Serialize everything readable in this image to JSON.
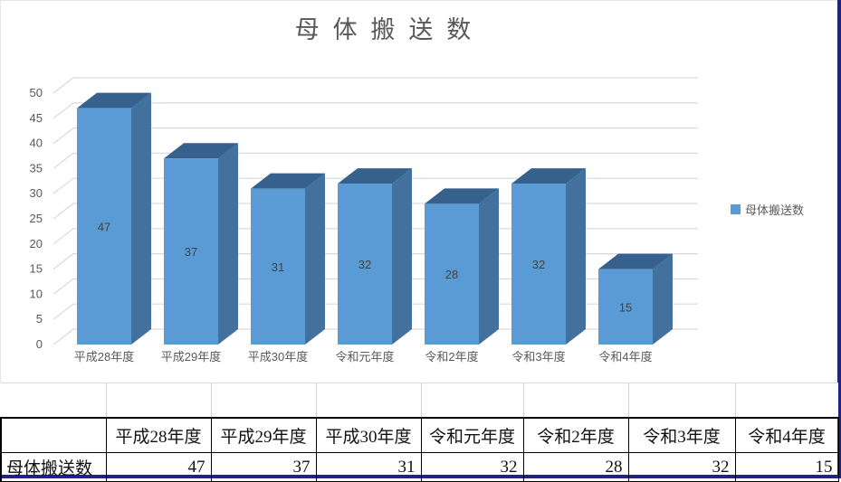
{
  "chart_data": {
    "type": "bar",
    "style": "3d-column",
    "title": "母体搬送数",
    "categories": [
      "平成28年度",
      "平成29年度",
      "平成30年度",
      "令和元年度",
      "令和2年度",
      "令和3年度",
      "令和4年度"
    ],
    "values": [
      47,
      37,
      31,
      32,
      28,
      32,
      15
    ],
    "series_name": "母体搬送数",
    "xlabel": "",
    "ylabel": "",
    "ylim": [
      0,
      50
    ],
    "ytick_step": 5,
    "grid": true,
    "legend_position": "right",
    "colors": {
      "bar_front": "#5B9BD5",
      "bar_side": "#41719C",
      "bar_top": "#35618C",
      "gridline": "#D9D9D9",
      "axis_text": "#595959",
      "bar_value_text": "#404040",
      "title_text": "#595959",
      "window_border": "#20208f"
    }
  },
  "legend": {
    "label": "母体搬送数"
  },
  "table": {
    "header_row": [
      "",
      "平成28年度",
      "平成29年度",
      "平成30年度",
      "令和元年度",
      "令和2年度",
      "令和3年度",
      "令和4年度"
    ],
    "row_label": "母体搬送数",
    "values": [
      47,
      37,
      31,
      32,
      28,
      32,
      15
    ]
  }
}
